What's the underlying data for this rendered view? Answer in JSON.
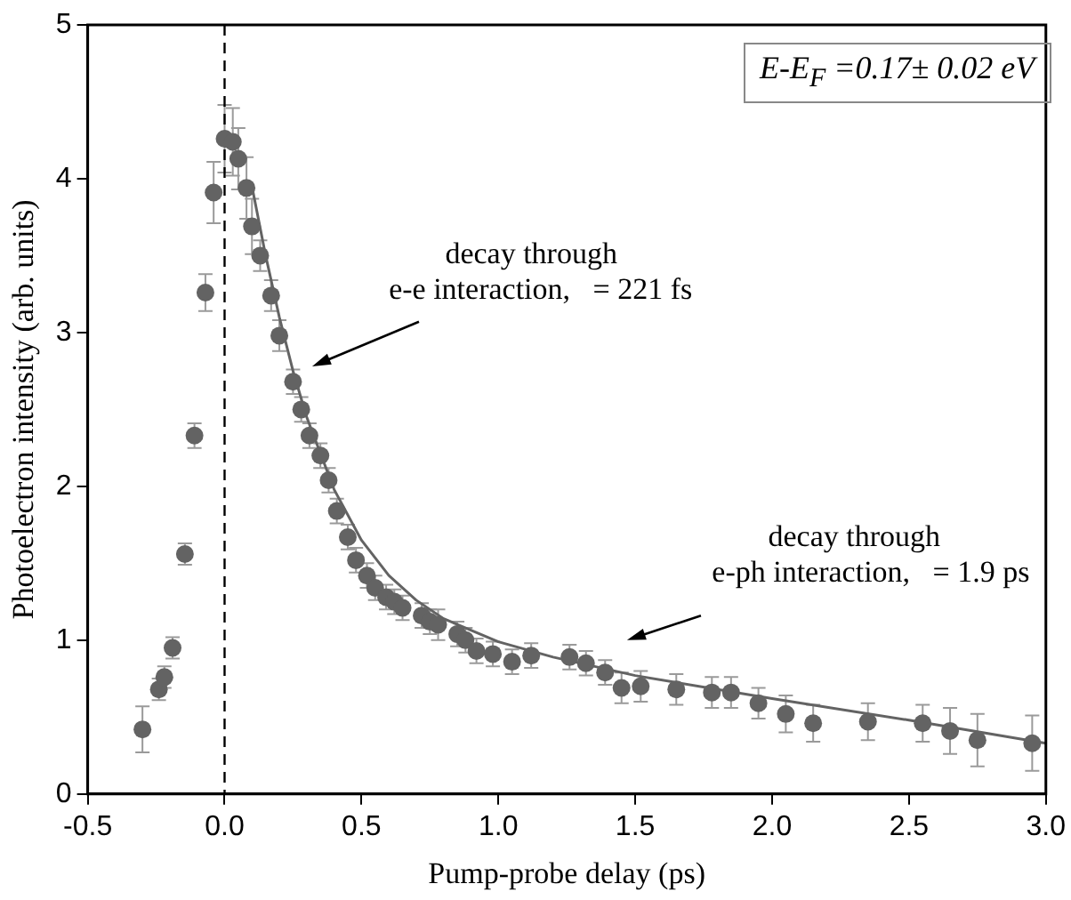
{
  "chart_data": {
    "type": "scatter",
    "xlabel": "Pump-probe delay (ps)",
    "ylabel": "Photoelectron intensity (arb. units)",
    "xlim": [
      -0.5,
      3.0
    ],
    "ylim": [
      0,
      5
    ],
    "xticks": [
      {
        "value": -0.5,
        "label": "-0.5"
      },
      {
        "value": 0,
        "label": "0.0"
      },
      {
        "value": 0.5,
        "label": "0.5"
      },
      {
        "value": 1,
        "label": "1.0"
      },
      {
        "value": 1.5,
        "label": "1.5"
      },
      {
        "value": 2,
        "label": "2.0"
      },
      {
        "value": 2.5,
        "label": "2.5"
      },
      {
        "value": 3,
        "label": "3.0"
      }
    ],
    "yticks": [
      0,
      1,
      2,
      3,
      4,
      5
    ],
    "grid": false,
    "legend": false,
    "marker": "circle",
    "series": [
      {
        "color": "#636363",
        "x": [
          -0.3,
          -0.24,
          -0.22,
          -0.19,
          -0.145,
          -0.11,
          -0.07,
          -0.04,
          0.0,
          0.03,
          0.05,
          0.08,
          0.1,
          0.13,
          0.17,
          0.2,
          0.25,
          0.28,
          0.31,
          0.35,
          0.38,
          0.41,
          0.45,
          0.48,
          0.52,
          0.55,
          0.59,
          0.62,
          0.65,
          0.72,
          0.75,
          0.78,
          0.85,
          0.88,
          0.92,
          0.98,
          1.05,
          1.12,
          1.26,
          1.32,
          1.39,
          1.45,
          1.52,
          1.65,
          1.78,
          1.85,
          1.95,
          2.05,
          2.15,
          2.35,
          2.55,
          2.65,
          2.75,
          2.95
        ],
        "values": [
          0.42,
          0.68,
          0.76,
          0.95,
          1.56,
          2.33,
          3.26,
          3.91,
          4.26,
          4.24,
          4.13,
          3.94,
          3.69,
          3.5,
          3.24,
          2.98,
          2.68,
          2.5,
          2.33,
          2.2,
          2.04,
          1.84,
          1.67,
          1.52,
          1.42,
          1.34,
          1.28,
          1.25,
          1.21,
          1.16,
          1.12,
          1.1,
          1.04,
          1.0,
          0.93,
          0.91,
          0.86,
          0.9,
          0.89,
          0.85,
          0.79,
          0.69,
          0.7,
          0.68,
          0.66,
          0.66,
          0.59,
          0.52,
          0.46,
          0.47,
          0.46,
          0.41,
          0.35,
          0.33
        ],
        "errors": [
          0.15,
          0.07,
          0.07,
          0.07,
          0.07,
          0.08,
          0.12,
          0.2,
          0.22,
          0.22,
          0.2,
          0.2,
          0.18,
          0.1,
          0.1,
          0.1,
          0.08,
          0.08,
          0.08,
          0.08,
          0.08,
          0.08,
          0.08,
          0.08,
          0.08,
          0.08,
          0.08,
          0.08,
          0.08,
          0.08,
          0.08,
          0.1,
          0.08,
          0.08,
          0.08,
          0.08,
          0.08,
          0.08,
          0.08,
          0.08,
          0.08,
          0.1,
          0.1,
          0.1,
          0.1,
          0.1,
          0.1,
          0.12,
          0.12,
          0.12,
          0.12,
          0.15,
          0.17,
          0.18
        ]
      },
      {
        "type": "line",
        "color": "#636363",
        "marker": "none",
        "x": [
          0.1,
          0.15,
          0.2,
          0.25,
          0.3,
          0.4,
          0.5,
          0.6,
          0.7,
          0.8,
          1.0,
          1.2,
          1.5,
          2.0,
          2.5,
          3.0
        ],
        "values": [
          3.95,
          3.5,
          3.1,
          2.75,
          2.45,
          1.98,
          1.65,
          1.42,
          1.26,
          1.14,
          0.99,
          0.89,
          0.77,
          0.62,
          0.48,
          0.33
        ]
      }
    ],
    "ref_lines": [
      {
        "axis": "x",
        "value": 0,
        "line_style": "dashed",
        "color": "#000000"
      }
    ],
    "annotations": [
      "E-E$_{F}$ =0.17± 0.02 eV",
      "decay through\ne-e interaction,   = 221 fs",
      "decay through\ne-ph interaction,   = 1.9 ps"
    ]
  }
}
